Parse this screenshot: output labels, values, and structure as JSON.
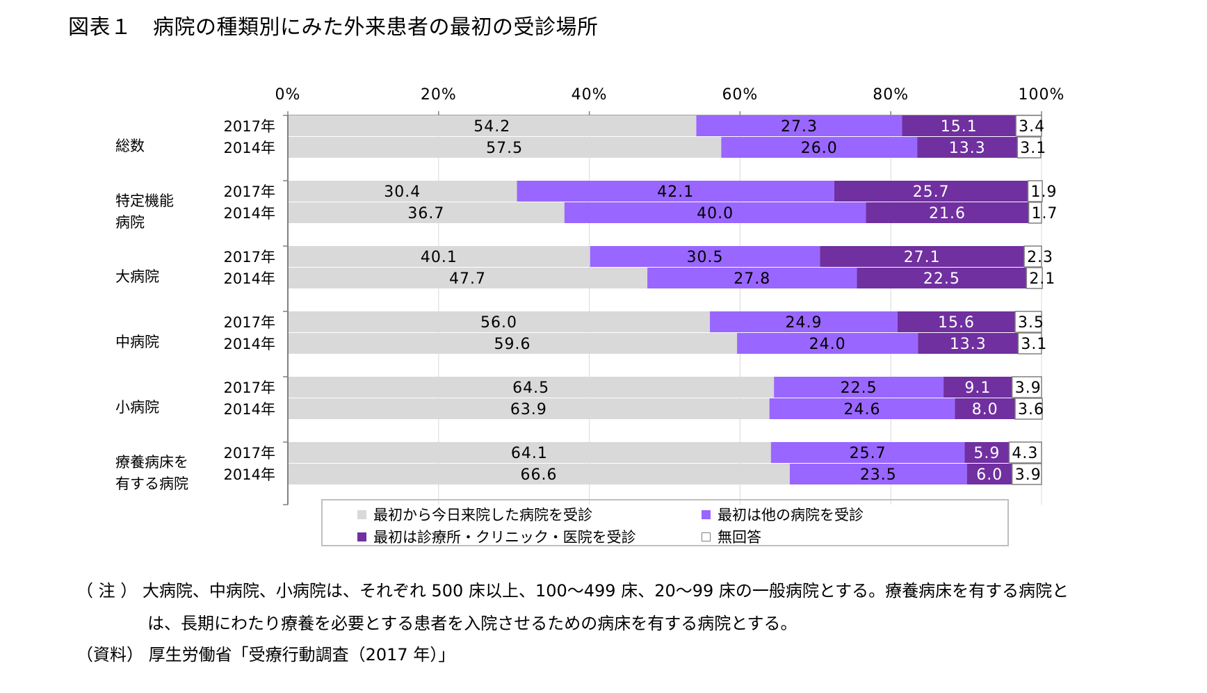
{
  "title": "図表１　病院の種類別にみた外来患者の最初の受診場所",
  "chart_data": {
    "type": "bar",
    "orientation": "horizontal",
    "stacked": true,
    "xlim": [
      0,
      100
    ],
    "x_ticks": [
      "0%",
      "20%",
      "40%",
      "60%",
      "80%",
      "100%"
    ],
    "grid": true,
    "legend_position": "bottom",
    "series": [
      {
        "name": "最初から今日来院した病院を受診",
        "color": "#d9d9d9"
      },
      {
        "name": "最初は他の病院を受診",
        "color": "#9966ff"
      },
      {
        "name": "最初は診療所・クリニック・医院を受診",
        "color": "#7030a0"
      },
      {
        "name": "無回答",
        "color": "#ffffff"
      }
    ],
    "groups": [
      {
        "label": [
          "総数"
        ],
        "rows": [
          {
            "year": "2017年",
            "values": [
              54.2,
              27.3,
              15.1,
              3.4
            ]
          },
          {
            "year": "2014年",
            "values": [
              57.5,
              26.0,
              13.3,
              3.1
            ]
          }
        ]
      },
      {
        "label": [
          "特定機能",
          "病院"
        ],
        "rows": [
          {
            "year": "2017年",
            "values": [
              30.4,
              42.1,
              25.7,
              1.9
            ]
          },
          {
            "year": "2014年",
            "values": [
              36.7,
              40.0,
              21.6,
              1.7
            ]
          }
        ]
      },
      {
        "label": [
          "大病院"
        ],
        "rows": [
          {
            "year": "2017年",
            "values": [
              40.1,
              30.5,
              27.1,
              2.3
            ]
          },
          {
            "year": "2014年",
            "values": [
              47.7,
              27.8,
              22.5,
              2.1
            ]
          }
        ]
      },
      {
        "label": [
          "中病院"
        ],
        "rows": [
          {
            "year": "2017年",
            "values": [
              56.0,
              24.9,
              15.6,
              3.5
            ]
          },
          {
            "year": "2014年",
            "values": [
              59.6,
              24.0,
              13.3,
              3.1
            ]
          }
        ]
      },
      {
        "label": [
          "小病院"
        ],
        "rows": [
          {
            "year": "2017年",
            "values": [
              64.5,
              22.5,
              9.1,
              3.9
            ]
          },
          {
            "year": "2014年",
            "values": [
              63.9,
              24.6,
              8.0,
              3.6
            ]
          }
        ]
      },
      {
        "label": [
          "療養病床を",
          "有する病院"
        ],
        "rows": [
          {
            "year": "2017年",
            "values": [
              64.1,
              25.7,
              5.9,
              4.3
            ]
          },
          {
            "year": "2014年",
            "values": [
              66.6,
              23.5,
              6.0,
              3.9
            ]
          }
        ]
      }
    ]
  },
  "legend": {
    "items": [
      {
        "label": "最初から今日来院した病院を受診",
        "color": "#d9d9d9"
      },
      {
        "label": "最初は他の病院を受診",
        "color": "#9966ff"
      },
      {
        "label": "最初は診療所・クリニック・医院を受診",
        "color": "#7030a0"
      },
      {
        "label": "無回答",
        "color": "#ffffff"
      }
    ]
  },
  "notes": {
    "line1": "（ 注 ） 大病院、中病院、小病院は、それぞれ 500 床以上、100～499 床、20～99 床の一般病院とする。療養病床を有する病院と",
    "line2": "は、長期にわたり療養を必要とする患者を入院させるための病床を有する病院とする。",
    "line3": "（資料） 厚生労働省「受療行動調査（2017 年）」"
  }
}
